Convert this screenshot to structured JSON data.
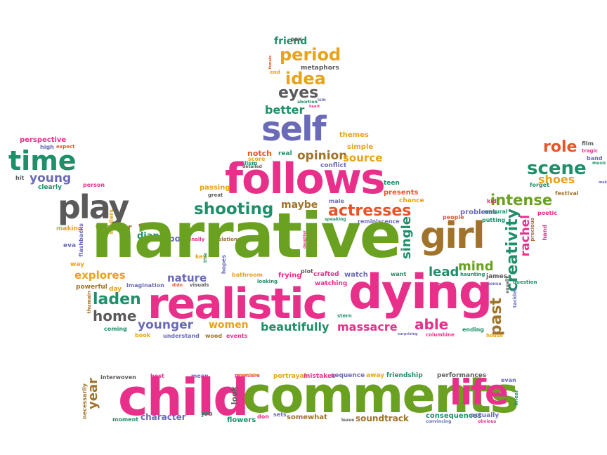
{
  "palette": {
    "green": "#6aa121",
    "pink": "#e8308a",
    "purple": "#6a6ab8",
    "orange": "#e9a21a",
    "teal": "#1f8f6a",
    "gray": "#5a5a5a",
    "brown": "#a0722a",
    "red": "#e8542a"
  },
  "words": [
    {
      "text": "friend",
      "color": "teal"
    },
    {
      "text": "sex",
      "color": "gray"
    },
    {
      "text": "period",
      "color": "orange"
    },
    {
      "text": "metaphors",
      "color": "gray"
    },
    {
      "text": "idea",
      "color": "orange"
    },
    {
      "text": "eyes",
      "color": "gray"
    },
    {
      "text": "abortion",
      "color": "teal"
    },
    {
      "text": "better",
      "color": "teal"
    },
    {
      "text": "self",
      "color": "purple"
    },
    {
      "text": "themes",
      "color": "orange"
    },
    {
      "text": "simple",
      "color": "orange"
    },
    {
      "text": "opinion",
      "color": "brown"
    },
    {
      "text": "source",
      "color": "orange"
    },
    {
      "text": "conflict",
      "color": "purple"
    },
    {
      "text": "realism",
      "color": "teal"
    },
    {
      "text": "notch",
      "color": "red"
    },
    {
      "text": "real",
      "color": "teal"
    },
    {
      "text": "score",
      "color": "orange"
    },
    {
      "text": "detailed",
      "color": "gray"
    },
    {
      "text": "follows",
      "color": "pink"
    },
    {
      "text": "teen",
      "color": "teal"
    },
    {
      "text": "presents",
      "color": "red"
    },
    {
      "text": "chance",
      "color": "orange"
    },
    {
      "text": "time",
      "color": "teal"
    },
    {
      "text": "perspective",
      "color": "pink"
    },
    {
      "text": "high",
      "color": "purple"
    },
    {
      "text": "expect",
      "color": "red"
    },
    {
      "text": "young",
      "color": "purple"
    },
    {
      "text": "clearly",
      "color": "teal"
    },
    {
      "text": "hit",
      "color": "gray"
    },
    {
      "text": "person",
      "color": "pink"
    },
    {
      "text": "play",
      "color": "gray"
    },
    {
      "text": "won",
      "color": "pink"
    },
    {
      "text": "diana",
      "color": "teal"
    },
    {
      "text": "post",
      "color": "purple"
    },
    {
      "text": "shooting",
      "color": "teal"
    },
    {
      "text": "passing",
      "color": "orange"
    },
    {
      "text": "great",
      "color": "gray"
    },
    {
      "text": "maybe",
      "color": "brown"
    },
    {
      "text": "male",
      "color": "purple"
    },
    {
      "text": "actresses",
      "color": "red"
    },
    {
      "text": "finally",
      "color": "pink"
    },
    {
      "text": "relationship",
      "color": "brown"
    },
    {
      "text": "speaking",
      "color": "teal"
    },
    {
      "text": "reminiscence",
      "color": "purple"
    },
    {
      "text": "teacher",
      "color": "brown"
    },
    {
      "text": "making",
      "color": "orange"
    },
    {
      "text": "eva",
      "color": "purple"
    },
    {
      "text": "flashbacks",
      "color": "purple"
    },
    {
      "text": "spoilers",
      "color": "orange"
    },
    {
      "text": "narrative",
      "color": "green"
    },
    {
      "text": "single",
      "color": "teal"
    },
    {
      "text": "girl",
      "color": "brown"
    },
    {
      "text": "creativity",
      "color": "teal"
    },
    {
      "text": "rachel",
      "color": "pink"
    },
    {
      "text": "role",
      "color": "red"
    },
    {
      "text": "scene",
      "color": "teal"
    },
    {
      "text": "shoes",
      "color": "orange"
    },
    {
      "text": "festival",
      "color": "brown"
    },
    {
      "text": "forget",
      "color": "teal"
    },
    {
      "text": "intense",
      "color": "green"
    },
    {
      "text": "kid",
      "color": "pink"
    },
    {
      "text": "problems",
      "color": "purple"
    },
    {
      "text": "natural",
      "color": "teal"
    },
    {
      "text": "poetic",
      "color": "pink"
    },
    {
      "text": "putting",
      "color": "teal"
    },
    {
      "text": "people",
      "color": "red"
    },
    {
      "text": "precious",
      "color": "brown"
    },
    {
      "text": "hand",
      "color": "pink"
    },
    {
      "text": "film",
      "color": "gray"
    },
    {
      "text": "tragic",
      "color": "pink"
    },
    {
      "text": "band",
      "color": "purple"
    },
    {
      "text": "music",
      "color": "teal"
    },
    {
      "text": "make",
      "color": "purple"
    },
    {
      "text": "way",
      "color": "orange"
    },
    {
      "text": "explores",
      "color": "orange"
    },
    {
      "text": "powerful",
      "color": "brown"
    },
    {
      "text": "day",
      "color": "orange"
    },
    {
      "text": "imagination",
      "color": "purple"
    },
    {
      "text": "nature",
      "color": "purple"
    },
    {
      "text": "key",
      "color": "orange"
    },
    {
      "text": "true",
      "color": "teal"
    },
    {
      "text": "hopes",
      "color": "purple"
    },
    {
      "text": "didn",
      "color": "red"
    },
    {
      "text": "visuals",
      "color": "gray"
    },
    {
      "text": "bathroom",
      "color": "orange"
    },
    {
      "text": "looking",
      "color": "teal"
    },
    {
      "text": "frying",
      "color": "pink"
    },
    {
      "text": "plot",
      "color": "gray"
    },
    {
      "text": "crafted",
      "color": "pink"
    },
    {
      "text": "watch",
      "color": "purple"
    },
    {
      "text": "watching",
      "color": "pink"
    },
    {
      "text": "want",
      "color": "teal"
    },
    {
      "text": "realistic",
      "color": "pink"
    },
    {
      "text": "dying",
      "color": "pink"
    },
    {
      "text": "lead",
      "color": "teal"
    },
    {
      "text": "mind",
      "color": "green"
    },
    {
      "text": "version",
      "color": "pink"
    },
    {
      "text": "haunting",
      "color": "teal"
    },
    {
      "text": "james",
      "color": "gray"
    },
    {
      "text": "sense",
      "color": "purple"
    },
    {
      "text": "equally",
      "color": "gray"
    },
    {
      "text": "question",
      "color": "teal"
    },
    {
      "text": "tackles",
      "color": "purple"
    },
    {
      "text": "laden",
      "color": "teal"
    },
    {
      "text": "home",
      "color": "gray"
    },
    {
      "text": "thumain",
      "color": "brown"
    },
    {
      "text": "younger",
      "color": "purple"
    },
    {
      "text": "women",
      "color": "orange"
    },
    {
      "text": "beautifully",
      "color": "teal"
    },
    {
      "text": "massacre",
      "color": "pink"
    },
    {
      "text": "stern",
      "color": "teal"
    },
    {
      "text": "able",
      "color": "pink"
    },
    {
      "text": "past",
      "color": "brown"
    },
    {
      "text": "ending",
      "color": "teal"
    },
    {
      "text": "house",
      "color": "orange"
    },
    {
      "text": "columbine",
      "color": "pink"
    },
    {
      "text": "surprising",
      "color": "purple"
    },
    {
      "text": "coming",
      "color": "teal"
    },
    {
      "text": "book",
      "color": "orange"
    },
    {
      "text": "understand",
      "color": "purple"
    },
    {
      "text": "wood",
      "color": "brown"
    },
    {
      "text": "events",
      "color": "pink"
    },
    {
      "text": "year",
      "color": "brown"
    },
    {
      "text": "interwoven",
      "color": "gray"
    },
    {
      "text": "best",
      "color": "pink"
    },
    {
      "text": "mean",
      "color": "purple"
    },
    {
      "text": "premiere",
      "color": "pink"
    },
    {
      "text": "portrayal",
      "color": "orange"
    },
    {
      "text": "mistakes",
      "color": "pink"
    },
    {
      "text": "sequence",
      "color": "purple"
    },
    {
      "text": "away",
      "color": "orange"
    },
    {
      "text": "friendship",
      "color": "teal"
    },
    {
      "text": "performances",
      "color": "gray"
    },
    {
      "text": "evan",
      "color": "purple"
    },
    {
      "text": "necessarily",
      "color": "brown"
    },
    {
      "text": "child",
      "color": "pink"
    },
    {
      "text": "look",
      "color": "gray"
    },
    {
      "text": "comments",
      "color": "green"
    },
    {
      "text": "life",
      "color": "pink"
    },
    {
      "text": "linear",
      "color": "teal"
    },
    {
      "text": "moment",
      "color": "teal"
    },
    {
      "text": "character",
      "color": "purple"
    },
    {
      "text": "job",
      "color": "teal"
    },
    {
      "text": "flowers",
      "color": "teal"
    },
    {
      "text": "don",
      "color": "pink"
    },
    {
      "text": "sets",
      "color": "purple"
    },
    {
      "text": "somewhat",
      "color": "brown"
    },
    {
      "text": "leave",
      "color": "gray"
    },
    {
      "text": "soundtrack",
      "color": "brown"
    },
    {
      "text": "consequences",
      "color": "teal"
    },
    {
      "text": "convincing",
      "color": "purple"
    },
    {
      "text": "actually",
      "color": "purple"
    },
    {
      "text": "obvious",
      "color": "pink"
    },
    {
      "text": "female",
      "color": "red"
    },
    {
      "text": "end",
      "color": "orange"
    },
    {
      "text": "ism",
      "color": "purple"
    },
    {
      "text": "heart",
      "color": "pink"
    },
    {
      "text": "daughter",
      "color": "pink"
    },
    {
      "text": "memorie",
      "color": "orange"
    }
  ]
}
